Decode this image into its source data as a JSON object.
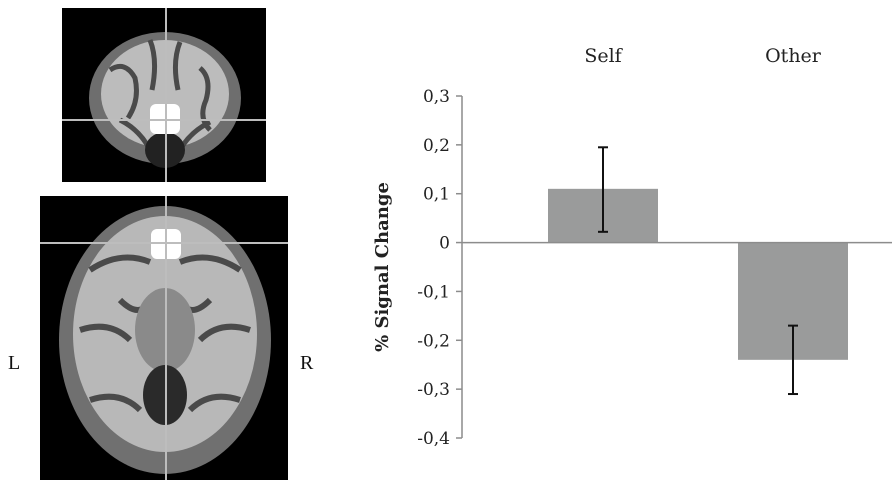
{
  "panel": {
    "left_label": "L",
    "right_label": "R"
  },
  "colors": {
    "bar": "#9a9b9b",
    "axis": "#8c8c8c",
    "errorbar": "#111111",
    "brain_background": "#000000",
    "crosshair": "#bdbdbd",
    "roi": "#ffffff"
  },
  "chart_data": {
    "type": "bar",
    "categories": [
      "Self",
      "Other"
    ],
    "values": [
      0.11,
      -0.24
    ],
    "error_upper": [
      0.195,
      -0.17
    ],
    "error_lower": [
      0.022,
      -0.31
    ],
    "ylabel": "% Signal Change",
    "ylim": [
      -0.4,
      0.3
    ],
    "yticks": [
      "0,3",
      "0,2",
      "0,1",
      "0",
      "-0,1",
      "-0,2",
      "-0,3",
      "-0,4"
    ],
    "ytick_values": [
      0.3,
      0.2,
      0.1,
      0,
      -0.1,
      -0.2,
      -0.3,
      -0.4
    ],
    "category_labels_position": "top",
    "grid": false
  }
}
